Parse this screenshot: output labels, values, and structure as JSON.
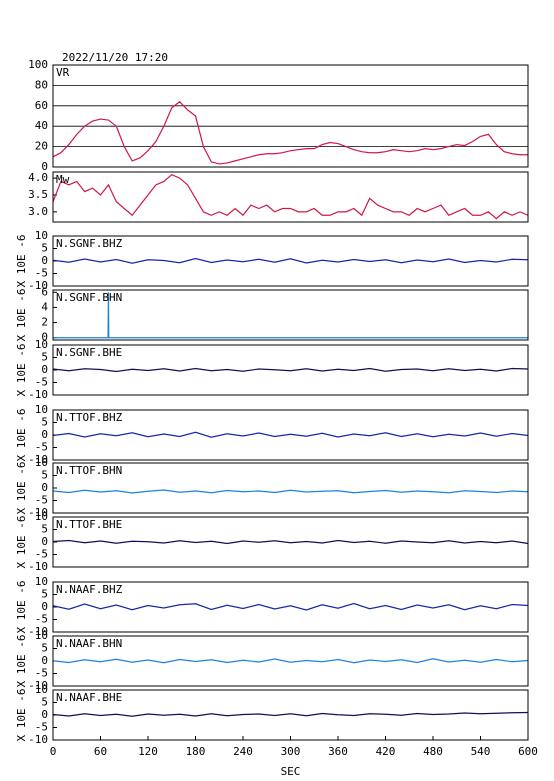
{
  "title": "2022/11/20 17:20",
  "chart_data": [
    {
      "type": "line",
      "title": "VR",
      "color": "#d01848",
      "grid": true,
      "xlim": [
        0,
        600
      ],
      "ylim": [
        0,
        100
      ],
      "yticks": [
        0,
        20,
        40,
        60,
        80,
        100
      ],
      "x": [
        0,
        10,
        20,
        30,
        40,
        50,
        60,
        70,
        80,
        90,
        100,
        110,
        120,
        130,
        140,
        150,
        160,
        170,
        180,
        190,
        200,
        210,
        220,
        230,
        240,
        250,
        260,
        270,
        280,
        290,
        300,
        310,
        320,
        330,
        340,
        350,
        360,
        370,
        380,
        390,
        400,
        410,
        420,
        430,
        440,
        450,
        460,
        470,
        480,
        490,
        500,
        510,
        520,
        530,
        540,
        550,
        560,
        570,
        580,
        590,
        600
      ],
      "values": [
        10,
        14,
        22,
        32,
        40,
        45,
        47,
        46,
        40,
        20,
        6,
        9,
        16,
        25,
        40,
        58,
        64,
        56,
        50,
        20,
        5,
        3,
        4,
        6,
        8,
        10,
        12,
        13,
        13,
        14,
        16,
        17,
        18,
        18,
        22,
        24,
        23,
        20,
        17,
        15,
        14,
        14,
        15,
        17,
        16,
        15,
        16,
        18,
        17,
        18,
        20,
        22,
        21,
        25,
        30,
        32,
        22,
        15,
        13,
        12,
        12
      ]
    },
    {
      "type": "line",
      "title": "Mw",
      "color": "#d01848",
      "xlim": [
        0,
        600
      ],
      "ylim": [
        2.7,
        4.18
      ],
      "yticks": [
        {
          "value": 3,
          "label": "3.0"
        },
        3.5,
        {
          "value": 4,
          "label": "4.0"
        }
      ],
      "x": [
        0,
        10,
        20,
        30,
        40,
        50,
        60,
        70,
        80,
        90,
        100,
        110,
        120,
        130,
        140,
        150,
        160,
        170,
        180,
        190,
        200,
        210,
        220,
        230,
        240,
        250,
        260,
        270,
        280,
        290,
        300,
        310,
        320,
        330,
        340,
        350,
        360,
        370,
        380,
        390,
        400,
        410,
        420,
        430,
        440,
        450,
        460,
        470,
        480,
        490,
        500,
        510,
        520,
        530,
        540,
        550,
        560,
        570,
        580,
        590,
        600
      ],
      "values": [
        3.3,
        3.9,
        3.8,
        3.9,
        3.6,
        3.7,
        3.5,
        3.8,
        3.3,
        3.1,
        2.9,
        3.2,
        3.5,
        3.8,
        3.9,
        4.1,
        4.0,
        3.8,
        3.4,
        3.0,
        2.9,
        3.0,
        2.9,
        3.1,
        2.9,
        3.2,
        3.1,
        3.2,
        3.0,
        3.1,
        3.1,
        3.0,
        3.0,
        3.1,
        2.9,
        2.9,
        3.0,
        3.0,
        3.1,
        2.9,
        3.4,
        3.2,
        3.1,
        3.0,
        3.0,
        2.9,
        3.1,
        3.0,
        3.1,
        3.2,
        2.9,
        3.0,
        3.1,
        2.9,
        2.9,
        3.0,
        2.8,
        3.0,
        2.9,
        3.0,
        2.9
      ]
    },
    {
      "type": "line",
      "title": "N.SGNF.BHZ",
      "ylabel": "X 10E -6",
      "color": "#1428a8",
      "xlim": [
        0,
        600
      ],
      "ylim": [
        -10,
        10
      ],
      "yticks": [
        -10,
        -5,
        0,
        5,
        10
      ],
      "x": [
        0,
        20,
        40,
        60,
        80,
        100,
        120,
        140,
        160,
        180,
        200,
        220,
        240,
        260,
        280,
        300,
        320,
        340,
        360,
        380,
        400,
        420,
        440,
        460,
        480,
        500,
        520,
        540,
        560,
        580,
        600
      ],
      "values": [
        0.3,
        -0.5,
        0.8,
        -0.4,
        0.6,
        -0.9,
        0.5,
        0.2,
        -0.7,
        1.0,
        -0.6,
        0.4,
        -0.3,
        0.7,
        -0.5,
        0.9,
        -0.8,
        0.3,
        -0.4,
        0.6,
        -0.2,
        0.5,
        -0.7,
        0.4,
        -0.3,
        0.8,
        -0.6,
        0.2,
        -0.4,
        0.7,
        0.5
      ]
    },
    {
      "type": "line",
      "title": "N.SGNF.BHN",
      "ylabel": "X 10E -6",
      "color": "#2080e0",
      "xlim": [
        0,
        600
      ],
      "ylim": [
        -0.3,
        6.3
      ],
      "yticks": [
        0,
        2,
        4,
        6
      ],
      "x": [
        0,
        69.5,
        70,
        70.5,
        600
      ],
      "values": [
        0,
        0,
        6,
        0,
        0
      ]
    },
    {
      "type": "line",
      "title": "N.SGNF.BHE",
      "ylabel": "X 10E -6",
      "color": "#101058",
      "xlim": [
        0,
        600
      ],
      "ylim": [
        -10,
        10
      ],
      "yticks": [
        -10,
        -5,
        0,
        5,
        10
      ],
      "x": [
        0,
        20,
        40,
        60,
        80,
        100,
        120,
        140,
        160,
        180,
        200,
        220,
        240,
        260,
        280,
        300,
        320,
        340,
        360,
        380,
        400,
        420,
        440,
        460,
        480,
        500,
        520,
        540,
        560,
        580,
        600
      ],
      "values": [
        0.4,
        -0.3,
        0.5,
        0.2,
        -0.6,
        0.3,
        -0.2,
        0.5,
        -0.4,
        0.6,
        -0.3,
        0.2,
        -0.5,
        0.4,
        0.1,
        -0.3,
        0.5,
        -0.4,
        0.3,
        -0.2,
        0.6,
        -0.5,
        0.2,
        0.4,
        -0.3,
        0.5,
        -0.2,
        0.3,
        -0.4,
        0.6,
        0.4
      ]
    },
    {
      "type": "line",
      "title": "N.TTOF.BHZ",
      "ylabel": "X 10E -6",
      "color": "#1428a8",
      "xlim": [
        0,
        600
      ],
      "ylim": [
        -10,
        10
      ],
      "yticks": [
        -10,
        -5,
        0,
        5,
        10
      ],
      "x": [
        0,
        20,
        40,
        60,
        80,
        100,
        120,
        140,
        160,
        180,
        200,
        220,
        240,
        260,
        280,
        300,
        320,
        340,
        360,
        380,
        400,
        420,
        440,
        460,
        480,
        500,
        520,
        540,
        560,
        580,
        600
      ],
      "values": [
        -0.2,
        0.6,
        -0.8,
        0.5,
        -0.3,
        0.9,
        -0.7,
        0.4,
        -0.6,
        1.1,
        -0.9,
        0.5,
        -0.4,
        0.8,
        -0.6,
        0.3,
        -0.5,
        0.7,
        -0.8,
        0.4,
        -0.3,
        0.9,
        -0.6,
        0.5,
        -0.7,
        0.3,
        -0.4,
        0.8,
        -0.5,
        0.6,
        -0.2
      ]
    },
    {
      "type": "line",
      "title": "N.TTOF.BHN",
      "ylabel": "X 10E -6",
      "color": "#2080e0",
      "xlim": [
        0,
        600
      ],
      "ylim": [
        -10,
        10
      ],
      "yticks": [
        -10,
        -5,
        0,
        5,
        10
      ],
      "x": [
        0,
        20,
        40,
        60,
        80,
        100,
        120,
        140,
        160,
        180,
        200,
        220,
        240,
        260,
        280,
        300,
        320,
        340,
        360,
        380,
        400,
        420,
        440,
        460,
        480,
        500,
        520,
        540,
        560,
        580,
        600
      ],
      "values": [
        -1.2,
        -1.8,
        -0.9,
        -1.6,
        -1.1,
        -2.0,
        -1.3,
        -0.8,
        -1.7,
        -1.2,
        -1.9,
        -1.0,
        -1.5,
        -1.2,
        -1.8,
        -0.9,
        -1.6,
        -1.3,
        -1.1,
        -1.9,
        -1.4,
        -1.0,
        -1.7,
        -1.2,
        -1.5,
        -1.9,
        -1.1,
        -1.4,
        -1.8,
        -1.2,
        -1.5
      ]
    },
    {
      "type": "line",
      "title": "N.TTOF.BHE",
      "ylabel": "X 10E -6",
      "color": "#101058",
      "xlim": [
        0,
        600
      ],
      "ylim": [
        -10,
        10
      ],
      "yticks": [
        -10,
        -5,
        0,
        5,
        10
      ],
      "x": [
        0,
        20,
        40,
        60,
        80,
        100,
        120,
        140,
        160,
        180,
        200,
        220,
        240,
        260,
        280,
        300,
        320,
        340,
        360,
        380,
        400,
        420,
        440,
        460,
        480,
        500,
        520,
        540,
        560,
        580,
        600
      ],
      "values": [
        0.2,
        0.6,
        -0.3,
        0.4,
        -0.5,
        0.3,
        0.1,
        -0.4,
        0.5,
        -0.2,
        0.3,
        -0.6,
        0.4,
        -0.1,
        0.5,
        -0.3,
        0.2,
        -0.4,
        0.6,
        -0.2,
        0.3,
        -0.5,
        0.4,
        0.0,
        -0.3,
        0.5,
        -0.4,
        0.2,
        -0.3,
        0.4,
        -0.6
      ]
    },
    {
      "type": "line",
      "title": "N.NAAF.BHZ",
      "ylabel": "X 10E -6",
      "color": "#1428a8",
      "xlim": [
        0,
        600
      ],
      "ylim": [
        -10,
        10
      ],
      "yticks": [
        -10,
        -5,
        0,
        5,
        10
      ],
      "x": [
        0,
        20,
        40,
        60,
        80,
        100,
        120,
        140,
        160,
        180,
        200,
        220,
        240,
        260,
        280,
        300,
        320,
        340,
        360,
        380,
        400,
        420,
        440,
        460,
        480,
        500,
        520,
        540,
        560,
        580,
        600
      ],
      "values": [
        0.5,
        -0.9,
        1.2,
        -0.7,
        0.8,
        -1.1,
        0.6,
        -0.4,
        0.9,
        1.3,
        -1.0,
        0.7,
        -0.6,
        1.0,
        -0.8,
        0.5,
        -1.2,
        0.9,
        -0.5,
        1.4,
        -0.7,
        0.6,
        -1.0,
        0.8,
        -0.4,
        0.9,
        -1.1,
        0.5,
        -0.7,
        1.0,
        0.6
      ]
    },
    {
      "type": "line",
      "title": "N.NAAF.BHN",
      "ylabel": "X 10E -6",
      "color": "#2080e0",
      "xlim": [
        0,
        600
      ],
      "ylim": [
        -10,
        10
      ],
      "yticks": [
        -10,
        -5,
        0,
        5,
        10
      ],
      "x": [
        0,
        20,
        40,
        60,
        80,
        100,
        120,
        140,
        160,
        180,
        200,
        220,
        240,
        260,
        280,
        300,
        320,
        340,
        360,
        380,
        400,
        420,
        440,
        460,
        480,
        500,
        520,
        540,
        560,
        580,
        600
      ],
      "values": [
        0.1,
        -0.6,
        0.5,
        -0.3,
        0.7,
        -0.5,
        0.4,
        -0.7,
        0.6,
        -0.2,
        0.5,
        -0.6,
        0.3,
        -0.4,
        0.8,
        -0.5,
        0.2,
        -0.3,
        0.6,
        -0.7,
        0.4,
        -0.2,
        0.5,
        -0.6,
        0.9,
        -0.4,
        0.3,
        -0.5,
        0.6,
        -0.3,
        0.2
      ]
    },
    {
      "type": "line",
      "title": "N.NAAF.BHE",
      "ylabel": "X 10E -6",
      "color": "#101058",
      "xlabel": "SEC",
      "xlim": [
        0,
        600
      ],
      "ylim": [
        -10,
        10
      ],
      "yticks": [
        -10,
        -5,
        0,
        5,
        10
      ],
      "xticks": [
        0,
        60,
        120,
        180,
        240,
        300,
        360,
        420,
        480,
        540,
        600
      ],
      "x": [
        0,
        20,
        40,
        60,
        80,
        100,
        120,
        140,
        160,
        180,
        200,
        220,
        240,
        260,
        280,
        300,
        320,
        340,
        360,
        380,
        400,
        420,
        440,
        460,
        480,
        500,
        520,
        540,
        560,
        580,
        600
      ],
      "values": [
        0.2,
        -0.4,
        0.5,
        -0.2,
        0.3,
        -0.5,
        0.4,
        -0.1,
        0.3,
        -0.4,
        0.5,
        -0.3,
        0.2,
        0.4,
        -0.2,
        0.5,
        -0.3,
        0.6,
        0.1,
        -0.2,
        0.5,
        0.3,
        -0.1,
        0.6,
        0.2,
        0.4,
        0.8,
        0.5,
        0.7,
        0.9,
        1.0
      ]
    }
  ]
}
